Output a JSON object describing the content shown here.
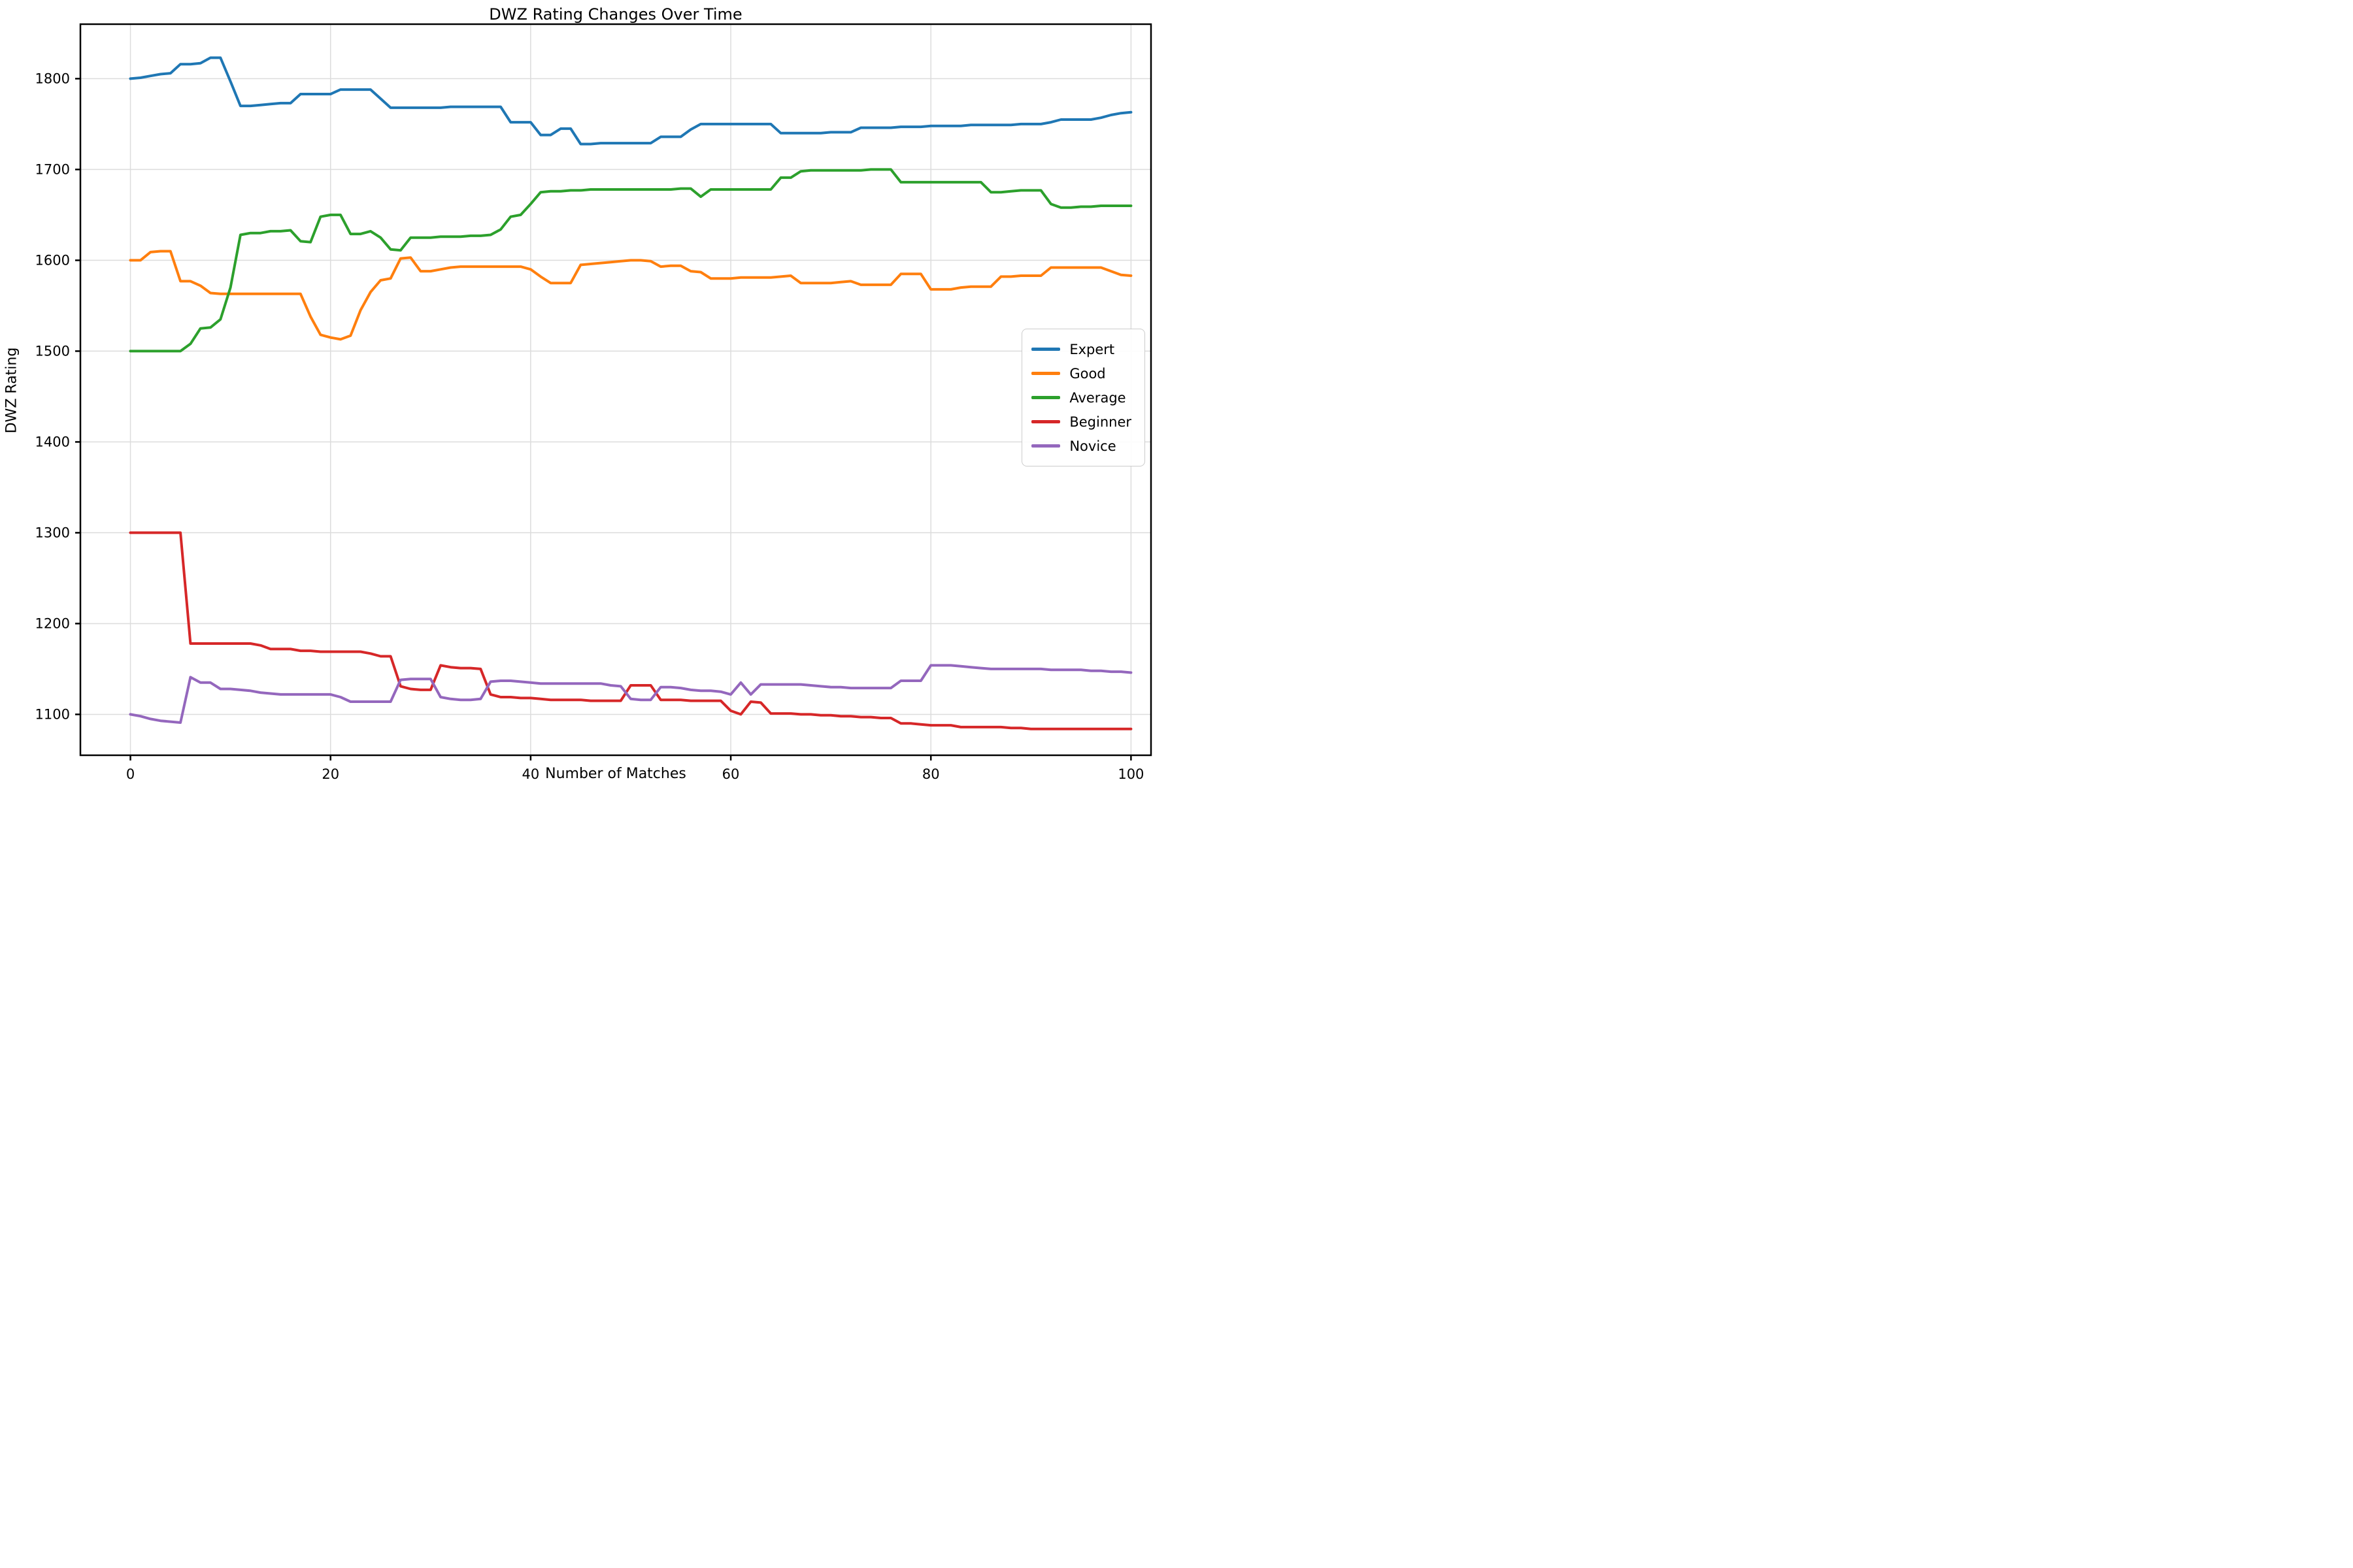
{
  "title": "DWZ Rating Changes Over Time",
  "axes": {
    "xlabel": "Number of Matches",
    "ylabel": "DWZ Rating",
    "x_ticks": [
      0,
      20,
      40,
      60,
      80,
      100
    ],
    "y_ticks": [
      1100,
      1200,
      1300,
      1400,
      1500,
      1600,
      1700,
      1800
    ]
  },
  "legend": {
    "position": "center right",
    "entries": [
      "Expert",
      "Good",
      "Average",
      "Beginner",
      "Novice"
    ]
  },
  "colors": {
    "expert": "#1f77b4",
    "good": "#ff7f0e",
    "average": "#2ca02c",
    "beginner": "#d62728",
    "novice": "#9467bd",
    "grid": "#dcdcdc",
    "spine": "#000000",
    "background": "#ffffff"
  },
  "chart_data": {
    "type": "line",
    "title": "DWZ Rating Changes Over Time",
    "xlabel": "Number of Matches",
    "ylabel": "DWZ Rating",
    "xlim": [
      -5,
      102
    ],
    "ylim": [
      1055,
      1860
    ],
    "grid": true,
    "legend_position": "center right",
    "x": [
      0,
      1,
      2,
      3,
      4,
      5,
      6,
      7,
      8,
      9,
      10,
      11,
      12,
      13,
      14,
      15,
      16,
      17,
      18,
      19,
      20,
      21,
      22,
      23,
      24,
      25,
      26,
      27,
      28,
      29,
      30,
      31,
      32,
      33,
      34,
      35,
      36,
      37,
      38,
      39,
      40,
      41,
      42,
      43,
      44,
      45,
      46,
      47,
      48,
      49,
      50,
      51,
      52,
      53,
      54,
      55,
      56,
      57,
      58,
      59,
      60,
      61,
      62,
      63,
      64,
      65,
      66,
      67,
      68,
      69,
      70,
      71,
      72,
      73,
      74,
      75,
      76,
      77,
      78,
      79,
      80,
      81,
      82,
      83,
      84,
      85,
      86,
      87,
      88,
      89,
      90,
      91,
      92,
      93,
      94,
      95,
      96,
      97,
      98,
      99,
      100
    ],
    "series": [
      {
        "name": "Expert",
        "color": "#1f77b4",
        "values": [
          1800,
          1801,
          1803,
          1805,
          1806,
          1816,
          1816,
          1817,
          1823,
          1823,
          1797,
          1770,
          1770,
          1771,
          1772,
          1773,
          1773,
          1783,
          1783,
          1783,
          1783,
          1788,
          1788,
          1788,
          1788,
          1778,
          1768,
          1768,
          1768,
          1768,
          1768,
          1768,
          1769,
          1769,
          1769,
          1769,
          1769,
          1769,
          1752,
          1752,
          1752,
          1738,
          1738,
          1745,
          1745,
          1728,
          1728,
          1729,
          1729,
          1729,
          1729,
          1729,
          1729,
          1736,
          1736,
          1736,
          1744,
          1750,
          1750,
          1750,
          1750,
          1750,
          1750,
          1750,
          1750,
          1740,
          1740,
          1740,
          1740,
          1740,
          1741,
          1741,
          1741,
          1746,
          1746,
          1746,
          1746,
          1747,
          1747,
          1747,
          1748,
          1748,
          1748,
          1748,
          1749,
          1749,
          1749,
          1749,
          1749,
          1750,
          1750,
          1750,
          1752,
          1755,
          1755,
          1755,
          1755,
          1757,
          1760,
          1762,
          1763
        ]
      },
      {
        "name": "Good",
        "color": "#ff7f0e",
        "values": [
          1600,
          1600,
          1609,
          1610,
          1610,
          1577,
          1577,
          1572,
          1564,
          1563,
          1563,
          1563,
          1563,
          1563,
          1563,
          1563,
          1563,
          1563,
          1538,
          1518,
          1515,
          1513,
          1517,
          1545,
          1565,
          1578,
          1580,
          1602,
          1603,
          1588,
          1588,
          1590,
          1592,
          1593,
          1593,
          1593,
          1593,
          1593,
          1593,
          1593,
          1590,
          1582,
          1575,
          1575,
          1575,
          1595,
          1596,
          1597,
          1598,
          1599,
          1600,
          1600,
          1599,
          1593,
          1594,
          1594,
          1588,
          1587,
          1580,
          1580,
          1580,
          1581,
          1581,
          1581,
          1581,
          1582,
          1583,
          1575,
          1575,
          1575,
          1575,
          1576,
          1577,
          1573,
          1573,
          1573,
          1573,
          1585,
          1585,
          1585,
          1568,
          1568,
          1568,
          1570,
          1571,
          1571,
          1571,
          1582,
          1582,
          1583,
          1583,
          1583,
          1592,
          1592,
          1592,
          1592,
          1592,
          1592,
          1588,
          1584,
          1583
        ]
      },
      {
        "name": "Average",
        "color": "#2ca02c",
        "values": [
          1500,
          1500,
          1500,
          1500,
          1500,
          1500,
          1508,
          1525,
          1526,
          1535,
          1570,
          1628,
          1630,
          1630,
          1632,
          1632,
          1633,
          1621,
          1620,
          1648,
          1650,
          1650,
          1629,
          1629,
          1632,
          1625,
          1612,
          1611,
          1625,
          1625,
          1625,
          1626,
          1626,
          1626,
          1627,
          1627,
          1628,
          1634,
          1648,
          1650,
          1662,
          1675,
          1676,
          1676,
          1677,
          1677,
          1678,
          1678,
          1678,
          1678,
          1678,
          1678,
          1678,
          1678,
          1678,
          1679,
          1679,
          1670,
          1678,
          1678,
          1678,
          1678,
          1678,
          1678,
          1678,
          1691,
          1691,
          1698,
          1699,
          1699,
          1699,
          1699,
          1699,
          1699,
          1700,
          1700,
          1700,
          1686,
          1686,
          1686,
          1686,
          1686,
          1686,
          1686,
          1686,
          1686,
          1675,
          1675,
          1676,
          1677,
          1677,
          1677,
          1662,
          1658,
          1658,
          1659,
          1659,
          1660,
          1660,
          1660,
          1660
        ]
      },
      {
        "name": "Beginner",
        "color": "#d62728",
        "values": [
          1300,
          1300,
          1300,
          1300,
          1300,
          1300,
          1178,
          1178,
          1178,
          1178,
          1178,
          1178,
          1178,
          1176,
          1172,
          1172,
          1172,
          1170,
          1170,
          1169,
          1169,
          1169,
          1169,
          1169,
          1167,
          1164,
          1164,
          1131,
          1128,
          1127,
          1127,
          1154,
          1152,
          1151,
          1151,
          1150,
          1122,
          1119,
          1119,
          1118,
          1118,
          1117,
          1116,
          1116,
          1116,
          1116,
          1115,
          1115,
          1115,
          1115,
          1132,
          1132,
          1132,
          1116,
          1116,
          1116,
          1115,
          1115,
          1115,
          1115,
          1104,
          1100,
          1114,
          1113,
          1101,
          1101,
          1101,
          1100,
          1100,
          1099,
          1099,
          1098,
          1098,
          1097,
          1097,
          1096,
          1096,
          1090,
          1090,
          1089,
          1088,
          1088,
          1088,
          1086,
          1086,
          1086,
          1086,
          1086,
          1085,
          1085,
          1084,
          1084,
          1084,
          1084,
          1084,
          1084,
          1084,
          1084,
          1084,
          1084,
          1084
        ]
      },
      {
        "name": "Novice",
        "color": "#9467bd",
        "values": [
          1100,
          1098,
          1095,
          1093,
          1092,
          1091,
          1141,
          1135,
          1135,
          1128,
          1128,
          1127,
          1126,
          1124,
          1123,
          1122,
          1122,
          1122,
          1122,
          1122,
          1122,
          1119,
          1114,
          1114,
          1114,
          1114,
          1114,
          1138,
          1139,
          1139,
          1139,
          1119,
          1117,
          1116,
          1116,
          1117,
          1136,
          1137,
          1137,
          1136,
          1135,
          1134,
          1134,
          1134,
          1134,
          1134,
          1134,
          1134,
          1132,
          1131,
          1117,
          1116,
          1116,
          1130,
          1130,
          1129,
          1127,
          1126,
          1126,
          1125,
          1122,
          1135,
          1122,
          1133,
          1133,
          1133,
          1133,
          1133,
          1132,
          1131,
          1130,
          1130,
          1129,
          1129,
          1129,
          1129,
          1129,
          1137,
          1137,
          1137,
          1154,
          1154,
          1154,
          1153,
          1152,
          1151,
          1150,
          1150,
          1150,
          1150,
          1150,
          1150,
          1149,
          1149,
          1149,
          1149,
          1148,
          1148,
          1147,
          1147,
          1146
        ]
      }
    ]
  }
}
